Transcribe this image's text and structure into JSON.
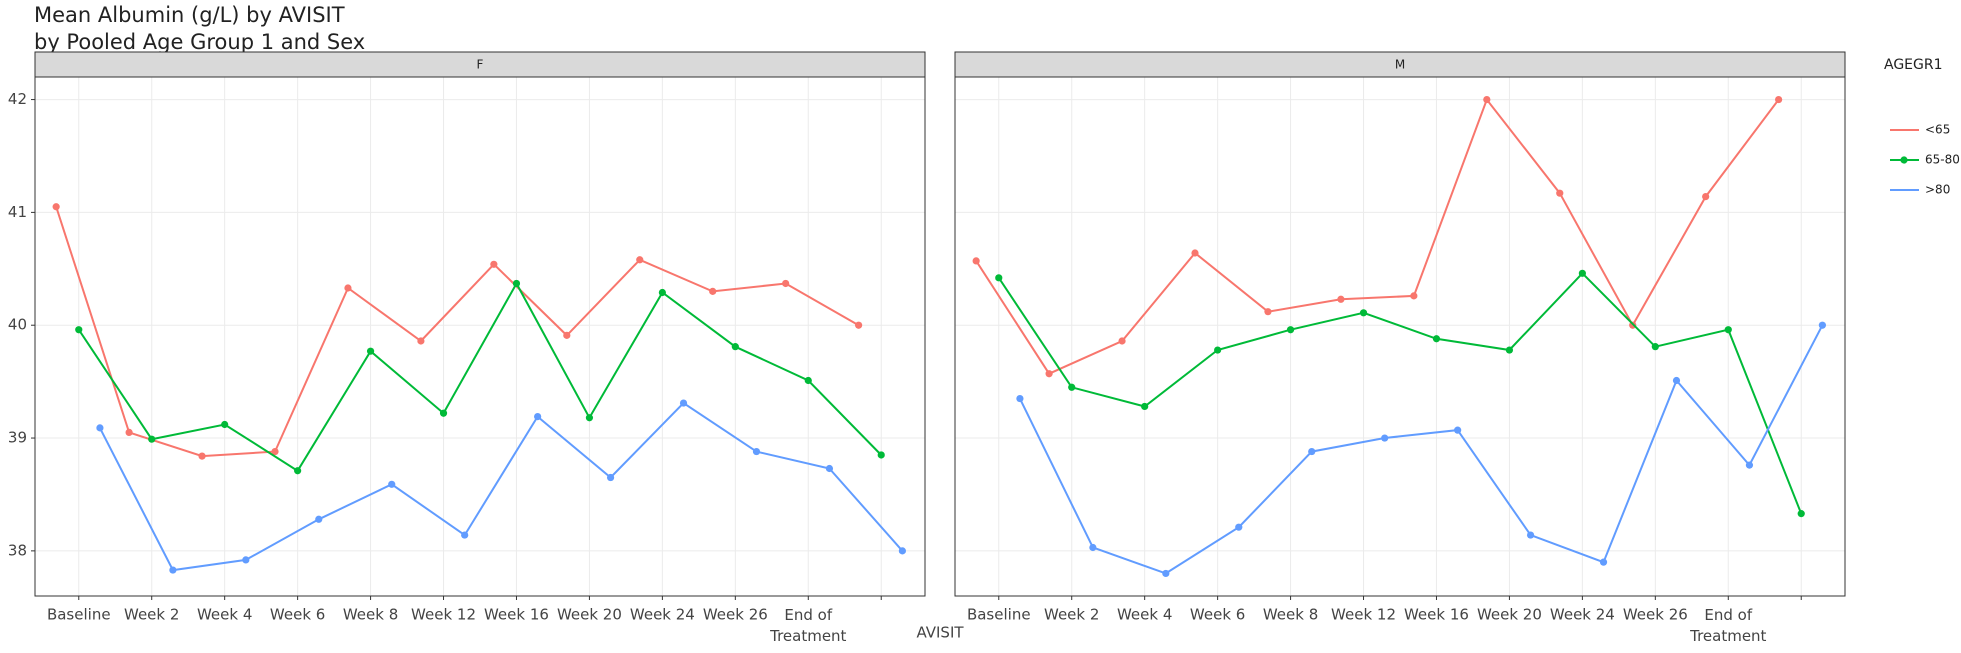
{
  "chart_data": {
    "type": "line",
    "title": "Mean Albumin (g/L) by AVISIT",
    "subtitle": "by Pooled Age Group 1 and Sex",
    "x_label": "AVISIT",
    "legend_title": "AGEGR1",
    "legend_position": "right",
    "grid": true,
    "categories": [
      "Baseline",
      "Week 2",
      "Week 4",
      "Week 6",
      "Week 8",
      "Week 12",
      "Week 16",
      "Week 20",
      "Week 24",
      "Week 26",
      "End of Treatment",
      null
    ],
    "ylim": [
      37.6,
      42.2
    ],
    "yticks": [
      38,
      39,
      40,
      41,
      42
    ],
    "facets": [
      {
        "label": "F",
        "series": [
          {
            "name": "<65",
            "color": "#F8766D",
            "values": [
              41.05,
              39.05,
              38.84,
              38.88,
              40.33,
              39.86,
              40.54,
              39.91,
              40.58,
              40.3,
              40.37,
              40.0
            ]
          },
          {
            "name": "65-80",
            "color": "#00BA38",
            "values": [
              39.96,
              38.99,
              39.12,
              38.71,
              39.77,
              39.22,
              40.37,
              39.18,
              40.29,
              39.81,
              39.51,
              38.85
            ]
          },
          {
            "name": ">80",
            "color": "#619CFF",
            "values": [
              39.09,
              37.83,
              37.92,
              38.28,
              38.59,
              38.14,
              39.19,
              38.65,
              39.31,
              38.88,
              38.73,
              38.0
            ]
          }
        ]
      },
      {
        "label": "M",
        "series": [
          {
            "name": "<65",
            "color": "#F8766D",
            "values": [
              40.57,
              39.57,
              39.86,
              40.64,
              40.12,
              40.23,
              40.26,
              42.0,
              41.17,
              40.0,
              41.14,
              42.0
            ]
          },
          {
            "name": "65-80",
            "color": "#00BA38",
            "values": [
              40.42,
              39.45,
              39.28,
              39.78,
              39.96,
              40.11,
              39.88,
              39.78,
              40.46,
              39.81,
              39.96,
              38.33
            ]
          },
          {
            "name": ">80",
            "color": "#619CFF",
            "values": [
              39.35,
              38.03,
              37.8,
              38.21,
              38.88,
              39.0,
              39.07,
              38.14,
              37.9,
              39.51,
              38.76,
              40.0
            ]
          }
        ]
      }
    ]
  }
}
